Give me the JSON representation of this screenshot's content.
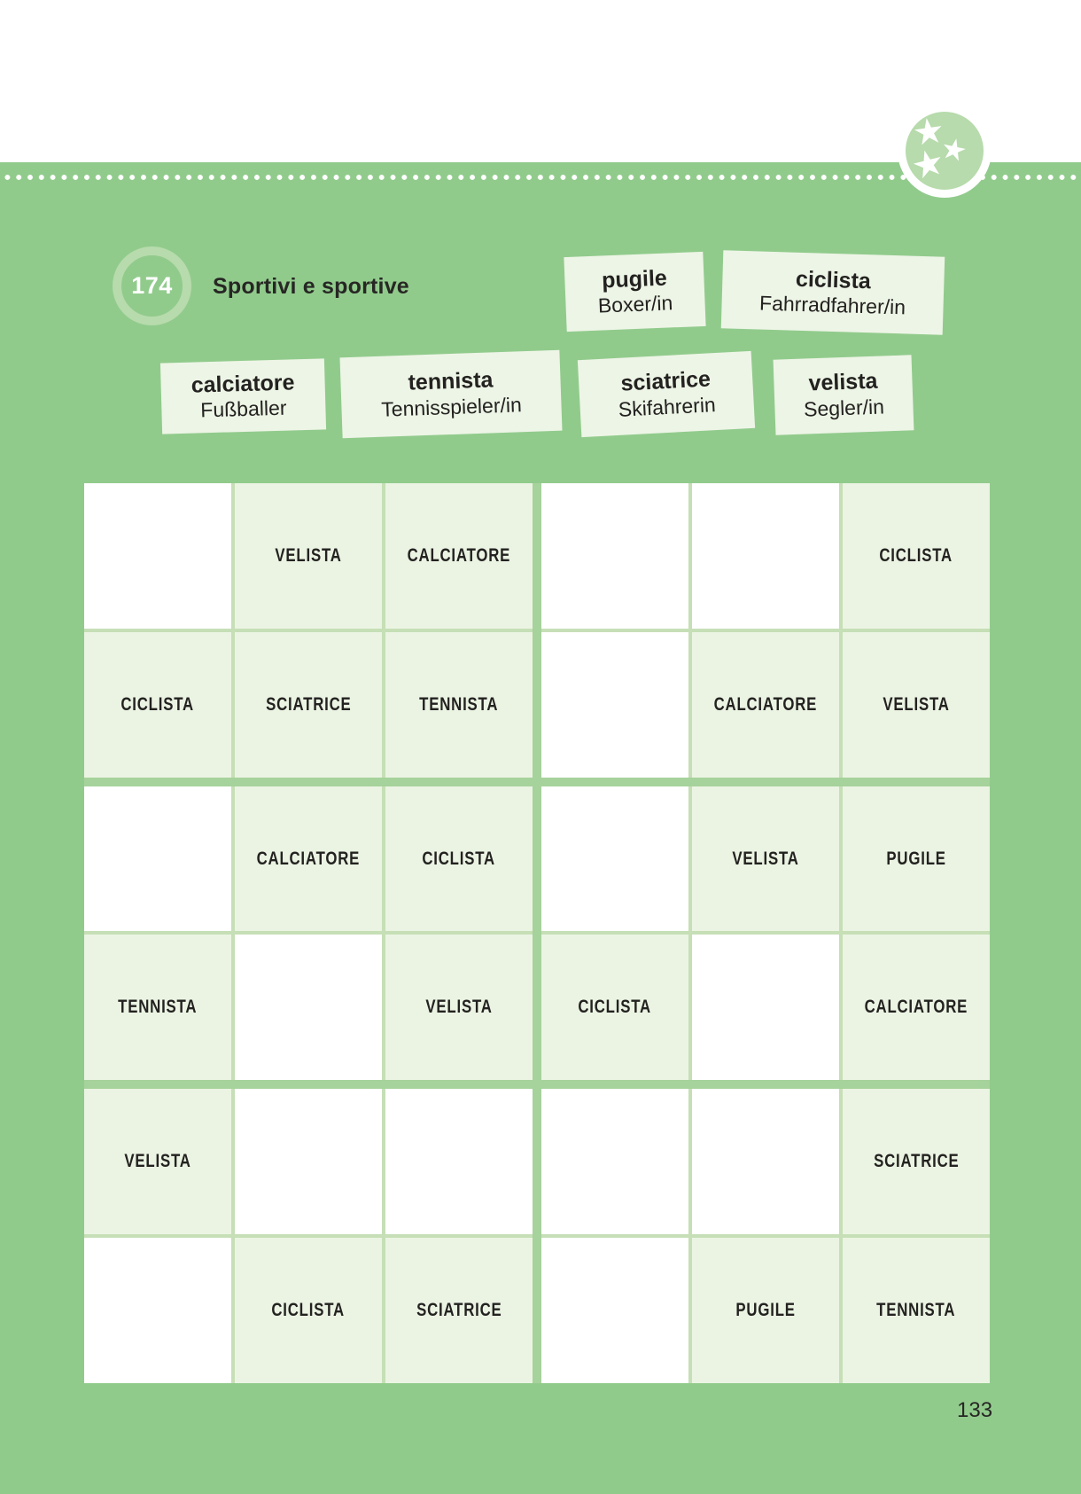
{
  "page": {
    "number": "133",
    "exercise_number": "174",
    "title": "Sportivi e sportive"
  },
  "icons": {
    "badge_stars": "three-white-stars-in-green-circle"
  },
  "vocab_cards": [
    {
      "term": "pugile",
      "translation": "Boxer/in"
    },
    {
      "term": "ciclista",
      "translation": "Fahrradfahrer/in"
    },
    {
      "term": "calciatore",
      "translation": "Fußballer"
    },
    {
      "term": "tennista",
      "translation": "Tennisspieler/in"
    },
    {
      "term": "sciatrice",
      "translation": "Skifahrerin"
    },
    {
      "term": "velista",
      "translation": "Segler/in"
    }
  ],
  "puzzle_grid": {
    "rows": 6,
    "cols": 6,
    "block_rows": 2,
    "block_cols": 3,
    "cells": [
      [
        "",
        "VELISTA",
        "CALCIATORE",
        "",
        "",
        "CICLISTA"
      ],
      [
        "CICLISTA",
        "SCIATRICE",
        "TENNISTA",
        "",
        "CALCIATORE",
        "VELISTA"
      ],
      [
        "",
        "CALCIATORE",
        "CICLISTA",
        "",
        "VELISTA",
        "PUGILE"
      ],
      [
        "TENNISTA",
        "",
        "VELISTA",
        "CICLISTA",
        "",
        "CALCIATORE"
      ],
      [
        "VELISTA",
        "",
        "",
        "",
        "",
        "SCIATRICE"
      ],
      [
        "",
        "CICLISTA",
        "SCIATRICE",
        "",
        "PUGILE",
        "TENNISTA"
      ]
    ]
  },
  "colors": {
    "page_green": "#91cb8c",
    "cell_fill_green": "#ebf4e3",
    "card_fill": "#edf5e6",
    "thin_line": "#c6dfb6",
    "thick_line": "#a6d29b",
    "badge_green": "#b7dbac",
    "text_dark": "#232220",
    "white": "#ffffff"
  }
}
